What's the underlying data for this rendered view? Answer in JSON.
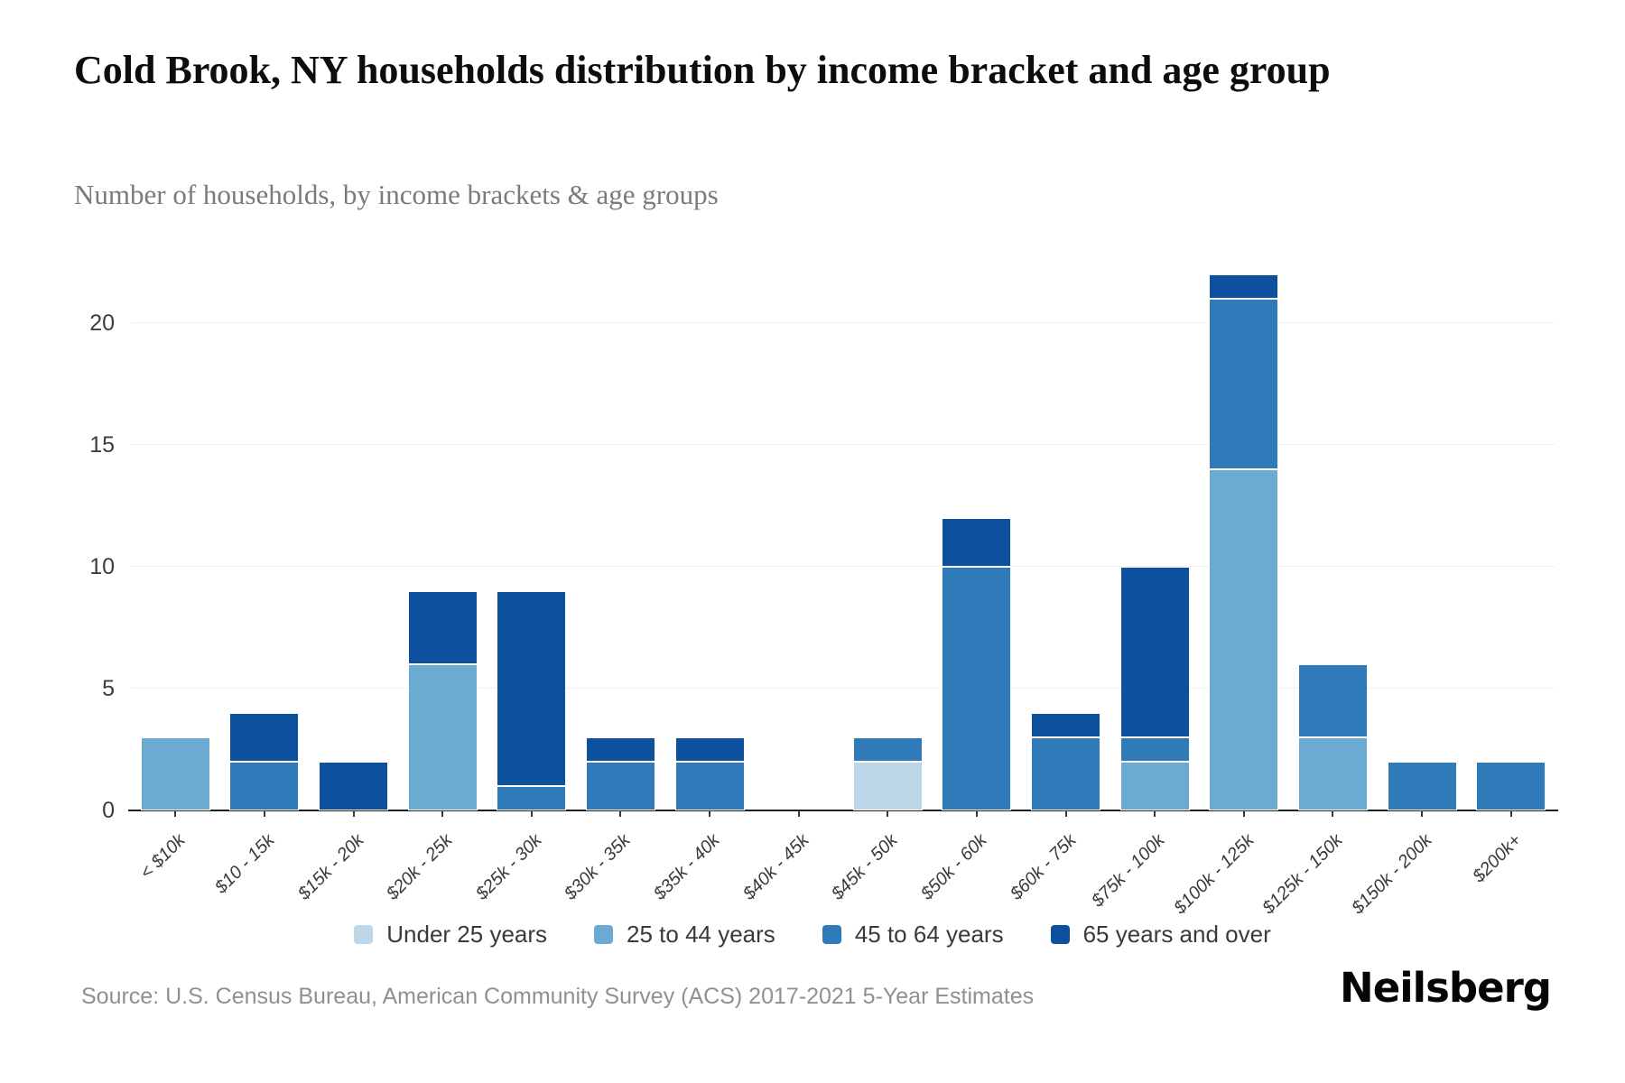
{
  "header": {
    "title": "Cold Brook, NY households distribution by income bracket and age group",
    "subtitle": "Number of households, by income brackets & age groups"
  },
  "chart_data": {
    "type": "bar",
    "stacked": true,
    "title": "Cold Brook, NY households distribution by income bracket and age group",
    "subtitle": "Number of households, by income brackets & age groups",
    "xlabel": "",
    "ylabel": "",
    "categories": [
      "< $10k",
      "$10 - 15k",
      "$15k - 20k",
      "$20k - 25k",
      "$25k - 30k",
      "$30k - 35k",
      "$35k - 40k",
      "$40k - 45k",
      "$45k - 50k",
      "$50k - 60k",
      "$60k - 75k",
      "$75k - 100k",
      "$100k - 125k",
      "$125k - 150k",
      "$150k - 200k",
      "$200k+"
    ],
    "series": [
      {
        "name": "Under 25 years",
        "color": "#bdd6e8",
        "values": [
          0,
          0,
          0,
          0,
          0,
          0,
          0,
          0,
          2,
          0,
          0,
          0,
          0,
          0,
          0,
          0
        ]
      },
      {
        "name": "25 to 44 years",
        "color": "#6babd2",
        "values": [
          3,
          0,
          0,
          6,
          0,
          0,
          0,
          0,
          0,
          0,
          0,
          2,
          14,
          3,
          0,
          0
        ]
      },
      {
        "name": "45 to 64 years",
        "color": "#2f7ab8",
        "values": [
          0,
          2,
          0,
          0,
          1,
          2,
          2,
          0,
          1,
          10,
          3,
          1,
          7,
          3,
          2,
          2
        ]
      },
      {
        "name": "65 years and over",
        "color": "#0d509e",
        "values": [
          0,
          2,
          2,
          3,
          8,
          1,
          1,
          0,
          0,
          2,
          1,
          7,
          1,
          0,
          0,
          0
        ]
      }
    ],
    "totals": [
      3,
      4,
      2,
      9,
      9,
      3,
      3,
      0,
      3,
      12,
      4,
      10,
      22,
      6,
      2,
      2
    ],
    "yticks": [
      0,
      5,
      10,
      15,
      20
    ],
    "ylim": [
      0,
      24
    ],
    "grid": true,
    "legend_position": "bottom"
  },
  "footer": {
    "source": "Source: U.S. Census Bureau, American Community Survey (ACS) 2017-2021 5-Year Estimates",
    "logo_text": "Neilsberg"
  }
}
